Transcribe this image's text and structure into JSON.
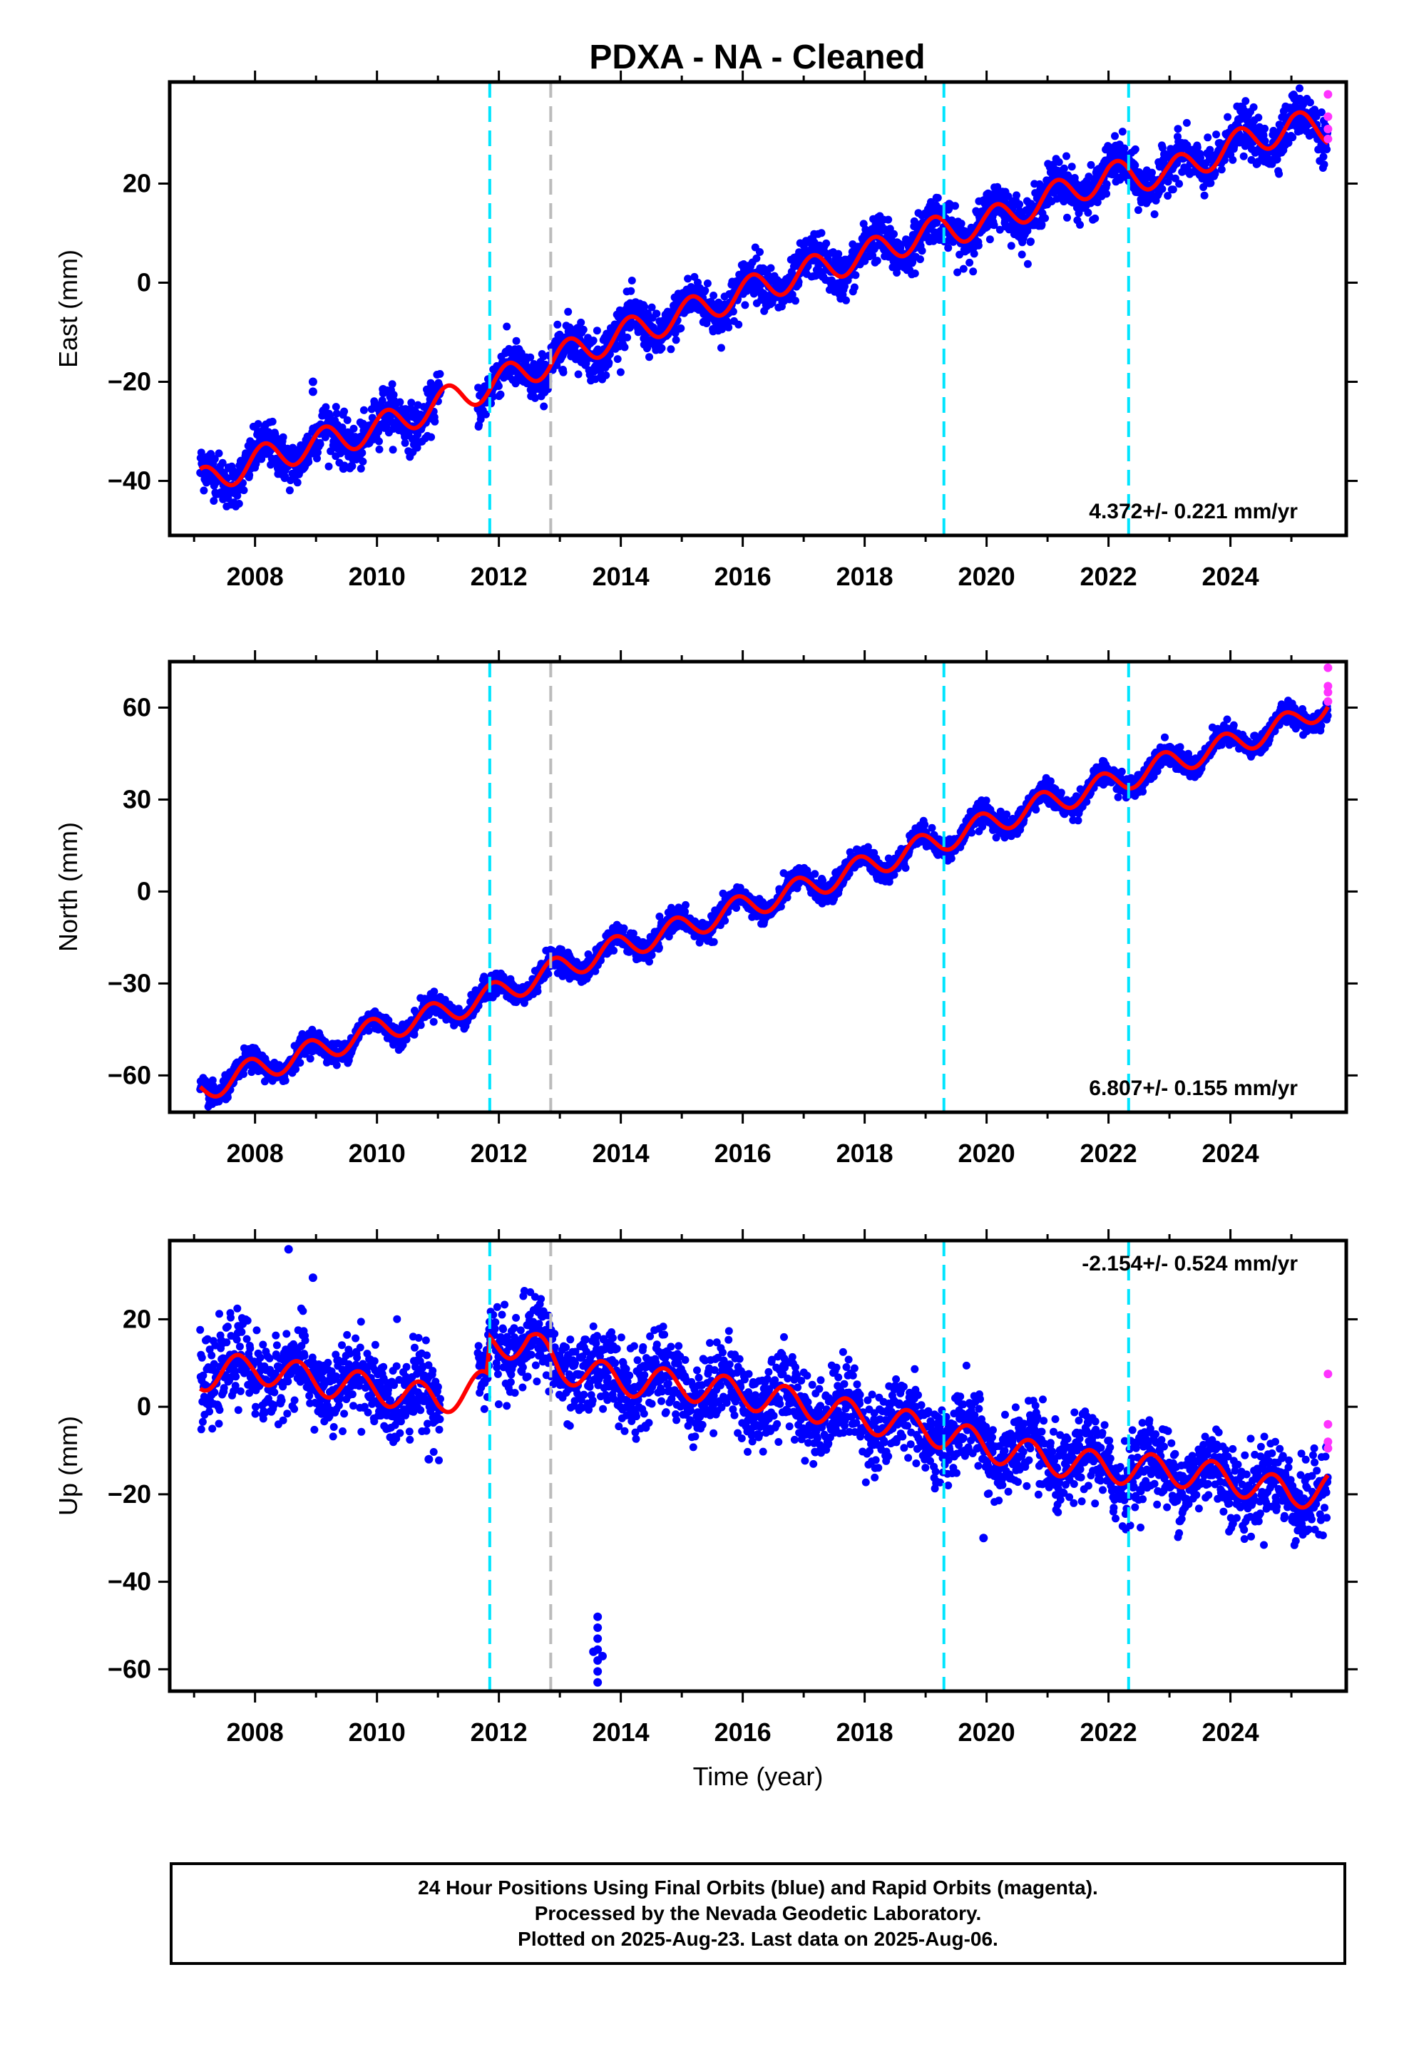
{
  "title": "PDXA  - NA - Cleaned",
  "colors": {
    "final_orbits": "#0000ff",
    "rapid_orbits": "#ff33ff",
    "model_fit": "#ff0000",
    "equipment_change": "#00e5ff",
    "other_event": "#bbbbbb"
  },
  "event_lines": [
    {
      "year": 2011.85,
      "kind": "equipment_change"
    },
    {
      "year": 2012.85,
      "kind": "other_event"
    },
    {
      "year": 2019.3,
      "kind": "equipment_change"
    },
    {
      "year": 2022.33,
      "kind": "equipment_change"
    }
  ],
  "footer": {
    "line1": "24 Hour Positions Using Final Orbits (blue) and Rapid Orbits (magenta).",
    "line2": "Processed by the Nevada Geodetic Laboratory.",
    "line3": "Plotted on 2025-Aug-23. Last data on 2025-Aug-06."
  },
  "chart_data": [
    {
      "type": "scatter",
      "ylabel": "East (mm)",
      "xlabel": "",
      "xlim": [
        2006.6,
        2025.9
      ],
      "ylim": [
        -51,
        40.5
      ],
      "x_ticks": [
        2008,
        2010,
        2012,
        2014,
        2016,
        2018,
        2020,
        2022,
        2024
      ],
      "y_ticks": [
        -40,
        -20,
        0,
        20
      ],
      "rate_text": "4.372+/- 0.221 mm/yr",
      "rate_position": "bottom-right",
      "start": 2007.1,
      "end": 2025.6,
      "gap": [
        2011.05,
        2011.65
      ],
      "fit_points": [
        [
          2007.1,
          -40.5
        ],
        [
          2008.0,
          -36.0
        ],
        [
          2009.0,
          -32.5
        ],
        [
          2010.0,
          -29.5
        ],
        [
          2011.0,
          -24.5
        ],
        [
          2012.0,
          -20.0
        ],
        [
          2013.0,
          -15.0
        ],
        [
          2014.0,
          -10.5
        ],
        [
          2015.0,
          -6.5
        ],
        [
          2016.0,
          -2.0
        ],
        [
          2017.0,
          2.0
        ],
        [
          2018.0,
          5.5
        ],
        [
          2019.0,
          10.0
        ],
        [
          2020.0,
          12.0
        ],
        [
          2021.0,
          17.0
        ],
        [
          2022.0,
          21.5
        ],
        [
          2023.0,
          22.0
        ],
        [
          2024.0,
          27.5
        ],
        [
          2025.0,
          31.5
        ],
        [
          2025.6,
          31.0
        ]
      ],
      "seasonal_amplitude": 3.0,
      "seasonal_phase": 0.1,
      "scatter_spread": 2.3,
      "rapid_orbits_points": [
        [
          2025.6,
          38.0
        ],
        [
          2025.6,
          33.5
        ],
        [
          2025.6,
          31.0
        ],
        [
          2025.6,
          29.0
        ]
      ],
      "outlier_points": [
        [
          2008.95,
          -20.0
        ],
        [
          2008.95,
          -22.0
        ],
        [
          2009.45,
          -37.5
        ],
        [
          2010.1,
          -21.5
        ]
      ]
    },
    {
      "type": "scatter",
      "ylabel": "North (mm)",
      "xlabel": "",
      "xlim": [
        2006.6,
        2025.9
      ],
      "ylim": [
        -72,
        75
      ],
      "x_ticks": [
        2008,
        2010,
        2012,
        2014,
        2016,
        2018,
        2020,
        2022,
        2024
      ],
      "y_ticks": [
        -60,
        -30,
        0,
        30,
        60
      ],
      "rate_text": "6.807+/- 0.155 mm/yr",
      "rate_position": "bottom-right",
      "start": 2007.1,
      "end": 2025.6,
      "gap": null,
      "fit_points": [
        [
          2007.1,
          -65.0
        ],
        [
          2008.0,
          -58.0
        ],
        [
          2009.0,
          -52.0
        ],
        [
          2010.0,
          -45.0
        ],
        [
          2011.0,
          -40.0
        ],
        [
          2012.0,
          -33.0
        ],
        [
          2013.0,
          -25.0
        ],
        [
          2014.0,
          -18.0
        ],
        [
          2015.0,
          -12.0
        ],
        [
          2016.0,
          -5.0
        ],
        [
          2017.0,
          1.0
        ],
        [
          2018.0,
          8.0
        ],
        [
          2019.0,
          15.0
        ],
        [
          2020.0,
          22.0
        ],
        [
          2021.0,
          29.0
        ],
        [
          2022.0,
          35.0
        ],
        [
          2023.0,
          42.0
        ],
        [
          2024.0,
          48.0
        ],
        [
          2025.0,
          55.0
        ],
        [
          2025.6,
          61.5
        ]
      ],
      "seasonal_amplitude": 4.0,
      "seasonal_phase": 0.35,
      "scatter_spread": 1.8,
      "rapid_orbits_points": [
        [
          2025.6,
          73.0
        ],
        [
          2025.6,
          67.0
        ],
        [
          2025.6,
          65.0
        ],
        [
          2025.6,
          62.0
        ]
      ],
      "outlier_points": []
    },
    {
      "type": "scatter",
      "ylabel": "Up (mm)",
      "xlabel": "Time (year)",
      "xlim": [
        2006.6,
        2025.9
      ],
      "ylim": [
        -65,
        38
      ],
      "x_ticks": [
        2008,
        2010,
        2012,
        2014,
        2016,
        2018,
        2020,
        2022,
        2024
      ],
      "y_ticks": [
        -60,
        -40,
        -20,
        0,
        20
      ],
      "rate_text": "-2.154+/- 0.524 mm/yr",
      "rate_position": "top-right",
      "start": 2007.1,
      "end": 2025.6,
      "gap": [
        2011.05,
        2011.65
      ],
      "fit_points": [
        [
          2007.1,
          7.0
        ],
        [
          2008.0,
          9.0
        ],
        [
          2009.0,
          6.0
        ],
        [
          2010.0,
          4.0
        ],
        [
          2011.0,
          1.5
        ],
        [
          2011.8,
          5.0
        ],
        [
          2011.86,
          14.0
        ],
        [
          2012.5,
          15.0
        ],
        [
          2013.0,
          9.0
        ],
        [
          2014.0,
          6.0
        ],
        [
          2015.0,
          5.0
        ],
        [
          2016.0,
          3.0
        ],
        [
          2017.0,
          0.5
        ],
        [
          2018.0,
          -2.5
        ],
        [
          2019.0,
          -5.0
        ],
        [
          2020.0,
          -9.0
        ],
        [
          2021.0,
          -12.0
        ],
        [
          2022.0,
          -14.0
        ],
        [
          2023.0,
          -14.5
        ],
        [
          2024.0,
          -16.5
        ],
        [
          2025.0,
          -20.0
        ],
        [
          2025.6,
          -18.5
        ]
      ],
      "seasonal_amplitude": 3.5,
      "seasonal_phase": 0.55,
      "scatter_spread": 4.5,
      "rapid_orbits_points": [
        [
          2025.6,
          7.5
        ],
        [
          2025.6,
          -4.0
        ],
        [
          2025.6,
          -8.0
        ],
        [
          2025.6,
          -9.5
        ]
      ],
      "outlier_points": [
        [
          2008.55,
          36.0
        ],
        [
          2008.95,
          29.5
        ],
        [
          2013.62,
          -48.0
        ],
        [
          2013.62,
          -50.5
        ],
        [
          2013.62,
          -53.0
        ],
        [
          2013.62,
          -55.5
        ],
        [
          2013.62,
          -58.0
        ],
        [
          2013.62,
          -60.5
        ],
        [
          2013.62,
          -63.0
        ],
        [
          2013.55,
          -56.0
        ],
        [
          2013.7,
          -57.0
        ],
        [
          2010.85,
          -12.0
        ],
        [
          2019.95,
          -30.0
        ]
      ]
    }
  ]
}
